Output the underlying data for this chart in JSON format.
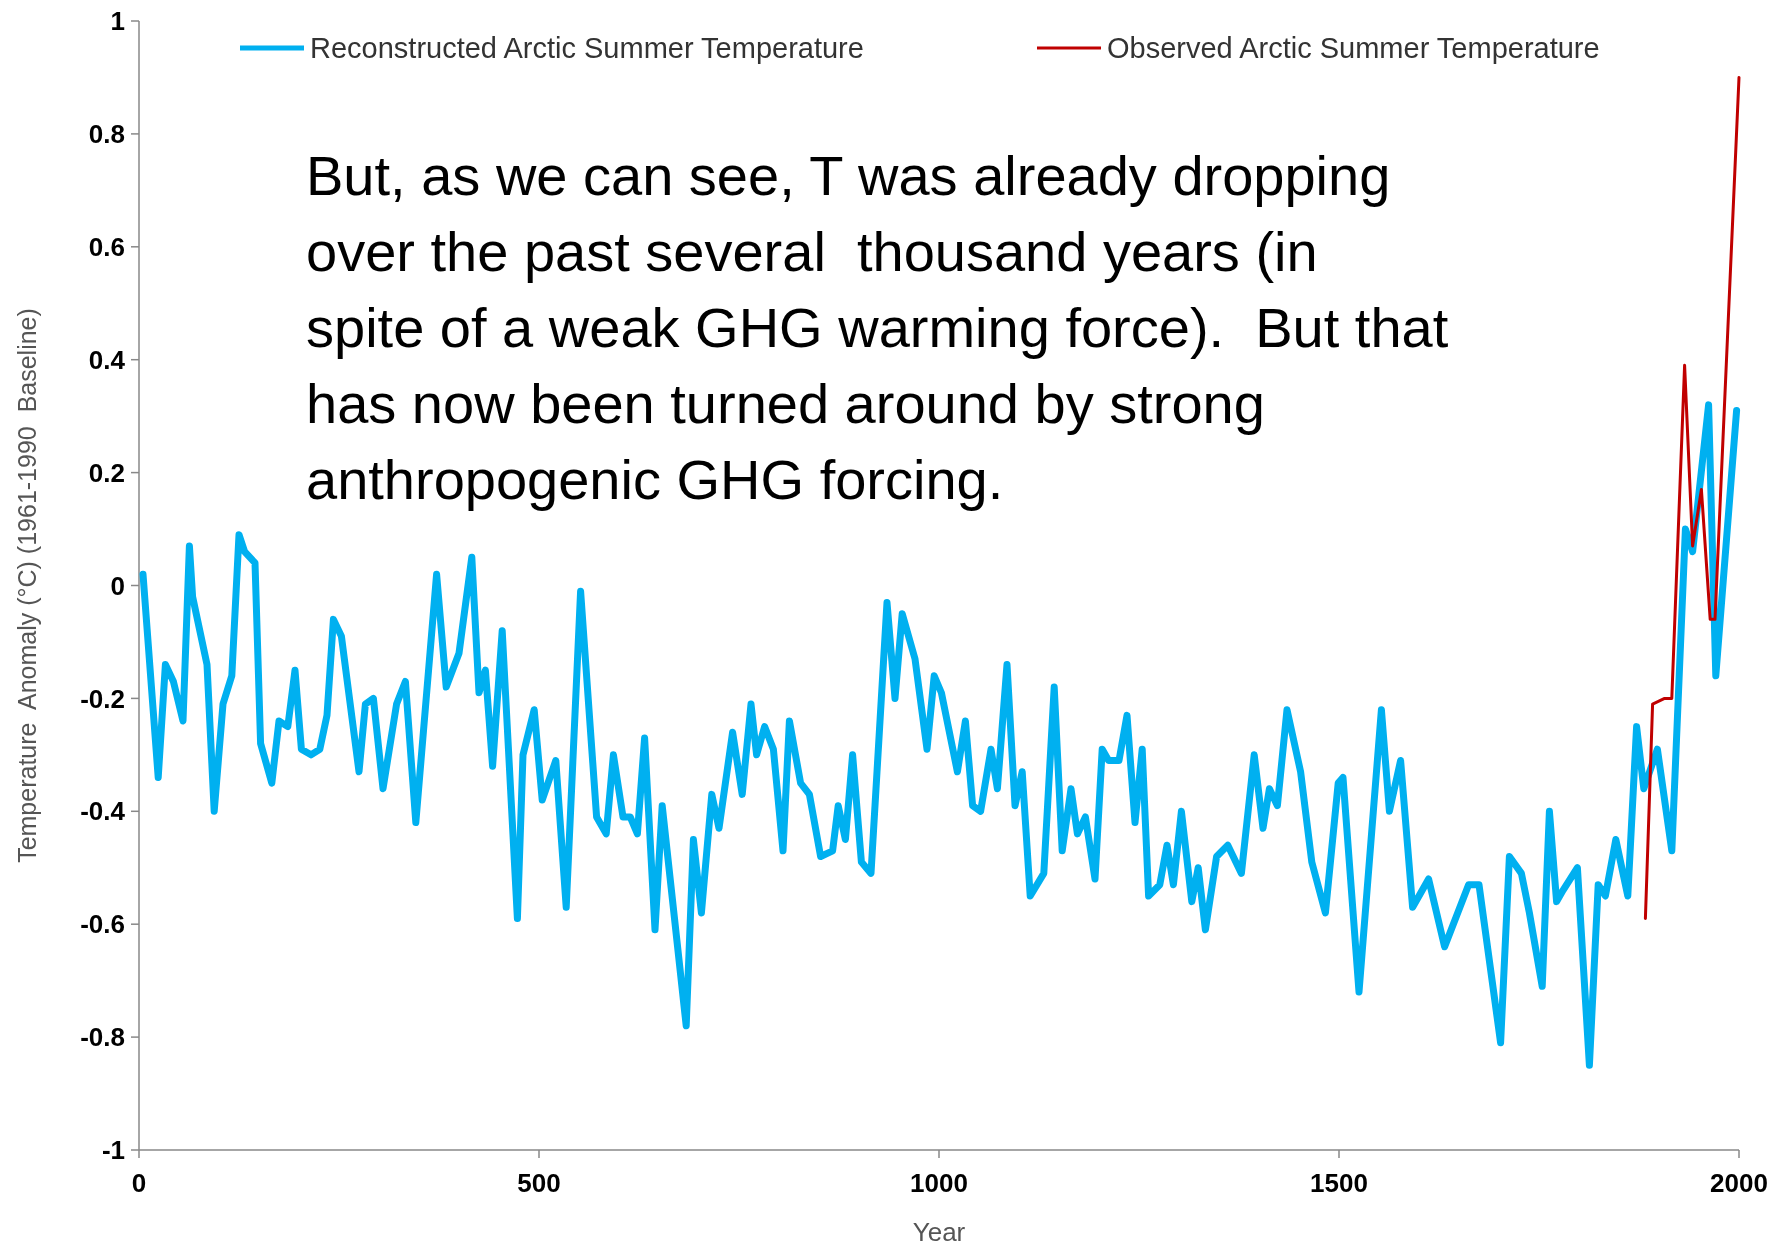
{
  "chart_data": {
    "type": "line",
    "xlabel": "Year",
    "ylabel": "Temperature  Anomaly (°C) (1961-1990  Baseline)",
    "xlim": [
      0,
      2000
    ],
    "xticks": [
      0,
      500,
      1000,
      1500,
      2000
    ],
    "ylim": [
      -1,
      1
    ],
    "yticks": [
      {
        "value": 1,
        "label": "1"
      },
      {
        "value": 0.8,
        "label": "0.8"
      },
      {
        "value": 0.6,
        "label": "0.6"
      },
      {
        "value": 0.4,
        "label": "0.4"
      },
      {
        "value": 0.2,
        "label": "0.2"
      },
      {
        "value": 0,
        "label": "0"
      },
      {
        "value": -0.2,
        "label": "-0.2"
      },
      {
        "value": -0.4,
        "label": "-0.4"
      },
      {
        "value": -0.6,
        "label": "-0.6"
      },
      {
        "value": -0.8,
        "label": "-0.8"
      },
      {
        "value": -1,
        "label": "-1"
      }
    ],
    "grid": false,
    "legend": "top",
    "marker": "none",
    "line_style": "solid",
    "annotations": [
      "But, as we can see, T was already dropping\nover the past several  thousand years (in\nspite of a weak GHG warming force).  But that\nhas now been turned around by strong\nanthropogenic GHG forcing."
    ],
    "series": [
      {
        "name": "Reconstructed Arctic Summer Temperature",
        "color": "#00b0f0",
        "x": [
          5,
          24,
          33,
          43,
          55,
          63,
          67,
          85,
          94,
          105,
          116,
          125,
          132,
          145,
          152,
          166,
          175,
          186,
          195,
          203,
          215,
          226,
          235,
          243,
          253,
          275,
          283,
          293,
          305,
          322,
          333,
          346,
          372,
          384,
          400,
          416,
          425,
          433,
          442,
          454,
          473,
          480,
          494,
          504,
          521,
          534,
          552,
          572,
          584,
          593,
          605,
          614,
          623,
          632,
          645,
          654,
          684,
          693,
          703,
          716,
          725,
          742,
          754,
          765,
          772,
          782,
          793,
          805,
          813,
          827,
          838,
          852,
          867,
          874,
          883,
          892,
          903,
          915,
          935,
          945,
          954,
          970,
          985,
          994,
          1003,
          1023,
          1033,
          1042,
          1052,
          1065,
          1073,
          1085,
          1095,
          1104,
          1114,
          1131,
          1144,
          1154,
          1165,
          1173,
          1183,
          1195,
          1204,
          1212,
          1225,
          1235,
          1245,
          1254,
          1262,
          1276,
          1285,
          1293,
          1303,
          1316,
          1324,
          1333,
          1347,
          1361,
          1378,
          1394,
          1405,
          1413,
          1423,
          1435,
          1452,
          1466,
          1483,
          1499,
          1505,
          1525,
          1553,
          1563,
          1577,
          1592,
          1612,
          1632,
          1662,
          1675,
          1702,
          1713,
          1728,
          1738,
          1754,
          1763,
          1772,
          1780,
          1798,
          1813,
          1824,
          1833,
          1846,
          1861,
          1872,
          1881,
          1898,
          1916,
          1933,
          1942,
          1962,
          1971,
          1997
        ],
        "values": [
          0.02,
          -0.34,
          -0.14,
          -0.17,
          -0.24,
          0.07,
          -0.02,
          -0.14,
          -0.4,
          -0.21,
          -0.16,
          0.09,
          0.06,
          0.04,
          -0.28,
          -0.35,
          -0.24,
          -0.25,
          -0.15,
          -0.29,
          -0.3,
          -0.29,
          -0.23,
          -0.06,
          -0.09,
          -0.33,
          -0.21,
          -0.2,
          -0.36,
          -0.21,
          -0.17,
          -0.42,
          0.02,
          -0.18,
          -0.12,
          0.05,
          -0.19,
          -0.15,
          -0.32,
          -0.08,
          -0.59,
          -0.3,
          -0.22,
          -0.38,
          -0.31,
          -0.57,
          -0.01,
          -0.41,
          -0.44,
          -0.3,
          -0.41,
          -0.41,
          -0.44,
          -0.27,
          -0.61,
          -0.39,
          -0.78,
          -0.45,
          -0.58,
          -0.37,
          -0.43,
          -0.26,
          -0.37,
          -0.21,
          -0.3,
          -0.25,
          -0.29,
          -0.47,
          -0.24,
          -0.35,
          -0.37,
          -0.48,
          -0.47,
          -0.39,
          -0.45,
          -0.3,
          -0.49,
          -0.51,
          -0.03,
          -0.2,
          -0.05,
          -0.13,
          -0.29,
          -0.16,
          -0.19,
          -0.33,
          -0.24,
          -0.39,
          -0.4,
          -0.29,
          -0.36,
          -0.14,
          -0.39,
          -0.33,
          -0.55,
          -0.51,
          -0.18,
          -0.47,
          -0.36,
          -0.44,
          -0.41,
          -0.52,
          -0.29,
          -0.31,
          -0.31,
          -0.23,
          -0.42,
          -0.29,
          -0.55,
          -0.53,
          -0.46,
          -0.53,
          -0.4,
          -0.56,
          -0.5,
          -0.61,
          -0.48,
          -0.46,
          -0.51,
          -0.3,
          -0.43,
          -0.36,
          -0.39,
          -0.22,
          -0.33,
          -0.49,
          -0.58,
          -0.35,
          -0.34,
          -0.72,
          -0.22,
          -0.4,
          -0.31,
          -0.57,
          -0.52,
          -0.64,
          -0.53,
          -0.53,
          -0.81,
          -0.48,
          -0.51,
          -0.58,
          -0.71,
          -0.4,
          -0.56,
          -0.54,
          -0.5,
          -0.85,
          -0.53,
          -0.55,
          -0.45,
          -0.55,
          -0.25,
          -0.36,
          -0.29,
          -0.47,
          0.1,
          0.06,
          0.32,
          -0.16,
          0.31
        ]
      },
      {
        "name": "Observed Arctic Summer Temperature",
        "color": "#c00000",
        "x": [
          1883,
          1892,
          1907,
          1916,
          1932,
          1942,
          1953,
          1964,
          1970,
          2000
        ],
        "values": [
          -0.59,
          -0.21,
          -0.2,
          -0.2,
          0.39,
          0.07,
          0.17,
          -0.06,
          -0.06,
          0.9
        ]
      }
    ]
  }
}
